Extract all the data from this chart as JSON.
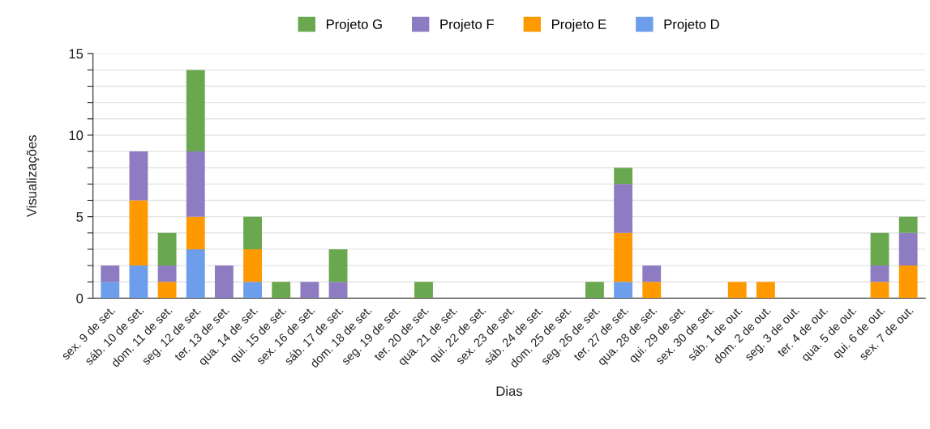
{
  "chart_data": {
    "type": "bar",
    "stacked": true,
    "xlabel": "Dias",
    "ylabel": "Visualizações",
    "categories": [
      "sex. 9 de set.",
      "sáb. 10 de set.",
      "dom. 11 de set.",
      "seg. 12 de set.",
      "ter. 13 de set.",
      "qua. 14 de set.",
      "qui. 15 de set.",
      "sex. 16 de set.",
      "sáb. 17 de set.",
      "dom. 18 de set.",
      "seg. 19 de set.",
      "ter. 20 de set.",
      "qua. 21 de set.",
      "qui. 22 de set.",
      "sex. 23 de set.",
      "sáb. 24 de set.",
      "dom. 25 de set.",
      "seg. 26 de set.",
      "ter. 27 de set.",
      "qua. 28 de set.",
      "qui. 29 de set.",
      "sex. 30 de set.",
      "sáb. 1 de out.",
      "dom. 2 de out.",
      "seg. 3 de out.",
      "ter. 4 de out.",
      "qua. 5 de out.",
      "qui. 6 de out.",
      "sex. 7 de out."
    ],
    "series": [
      {
        "name": "Projeto D",
        "color": "#6d9eeb",
        "values": [
          1,
          2,
          0,
          3,
          0,
          1,
          0,
          0,
          0,
          0,
          0,
          0,
          0,
          0,
          0,
          0,
          0,
          0,
          1,
          0,
          0,
          0,
          0,
          0,
          0,
          0,
          0,
          0,
          0
        ]
      },
      {
        "name": "Projeto E",
        "color": "#ff9900",
        "values": [
          0,
          4,
          1,
          2,
          0,
          2,
          0,
          0,
          0,
          0,
          0,
          0,
          0,
          0,
          0,
          0,
          0,
          0,
          3,
          1,
          0,
          0,
          1,
          1,
          0,
          0,
          0,
          1,
          2
        ]
      },
      {
        "name": "Projeto F",
        "color": "#8e7cc3",
        "values": [
          1,
          3,
          1,
          4,
          2,
          0,
          0,
          1,
          1,
          0,
          0,
          0,
          0,
          0,
          0,
          0,
          0,
          0,
          3,
          1,
          0,
          0,
          0,
          0,
          0,
          0,
          0,
          1,
          2
        ]
      },
      {
        "name": "Projeto G",
        "color": "#6aa84f",
        "values": [
          0,
          0,
          2,
          5,
          0,
          2,
          1,
          0,
          2,
          0,
          0,
          1,
          0,
          0,
          0,
          0,
          0,
          1,
          1,
          0,
          0,
          0,
          0,
          0,
          0,
          0,
          0,
          2,
          1
        ]
      }
    ],
    "ylim": [
      0,
      15
    ],
    "yticks": [
      0,
      {
        "value": 1,
        "label": null
      },
      {
        "value": 2,
        "label": null
      },
      {
        "value": 3,
        "label": null
      },
      {
        "value": 4,
        "label": null
      },
      5,
      {
        "value": 6,
        "label": null
      },
      {
        "value": 7,
        "label": null
      },
      {
        "value": 8,
        "label": null
      },
      {
        "value": 9,
        "label": null
      },
      10,
      {
        "value": 11,
        "label": null
      },
      {
        "value": 12,
        "label": null
      },
      {
        "value": 13,
        "label": null
      },
      {
        "value": 14,
        "label": null
      },
      15
    ],
    "grid": "y",
    "legend": "top"
  }
}
